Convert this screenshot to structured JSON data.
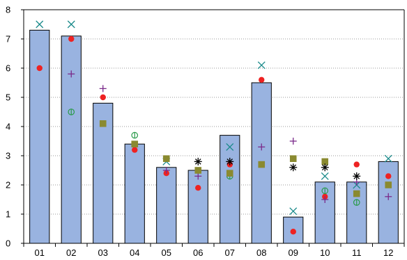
{
  "chart_data": {
    "type": "bar",
    "categories": [
      "01",
      "02",
      "03",
      "04",
      "05",
      "06",
      "07",
      "08",
      "09",
      "10",
      "11",
      "12"
    ],
    "values": [
      7.3,
      7.1,
      4.8,
      3.4,
      2.6,
      2.5,
      3.7,
      5.5,
      0.9,
      2.1,
      2.1,
      2.8
    ],
    "ylim": [
      0,
      8
    ],
    "yticks": [
      0,
      1,
      2,
      3,
      4,
      5,
      6,
      7,
      8
    ],
    "grid": true,
    "bar_color": "#99b3e0",
    "overlay_series": [
      {
        "marker": "x",
        "color": "#1a8a8a",
        "values": [
          7.5,
          7.5,
          null,
          null,
          2.8,
          null,
          3.3,
          6.1,
          1.1,
          2.3,
          2.0,
          2.9
        ]
      },
      {
        "marker": "circle",
        "color": "#ee2222",
        "values": [
          6.0,
          7.0,
          5.0,
          3.2,
          2.4,
          1.9,
          2.7,
          5.6,
          0.4,
          1.6,
          2.7,
          2.3
        ]
      },
      {
        "marker": "plus",
        "color": "#7a2a8a",
        "values": [
          null,
          5.8,
          5.3,
          null,
          2.5,
          2.3,
          null,
          3.3,
          3.5,
          1.5,
          2.1,
          1.6
        ]
      },
      {
        "marker": "circle-bar",
        "color": "#2a9a4a",
        "values": [
          null,
          4.5,
          null,
          3.7,
          null,
          null,
          2.3,
          null,
          null,
          1.8,
          1.4,
          null
        ]
      },
      {
        "marker": "square",
        "color": "#8a8a30",
        "values": [
          null,
          null,
          4.1,
          3.4,
          2.9,
          2.5,
          2.4,
          2.7,
          2.9,
          2.8,
          1.7,
          2.0
        ]
      },
      {
        "marker": "asterisk",
        "color": "#000000",
        "values": [
          null,
          null,
          null,
          null,
          null,
          2.8,
          2.8,
          null,
          2.6,
          2.6,
          2.3,
          null
        ]
      }
    ]
  }
}
